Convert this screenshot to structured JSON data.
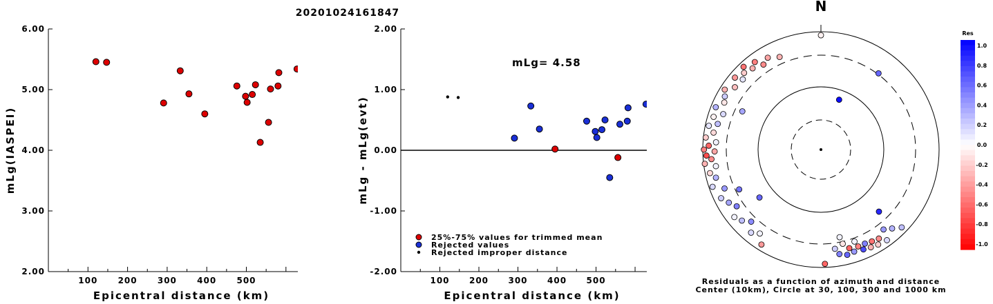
{
  "title": "20201024161847",
  "chart_data": [
    {
      "type": "scatter",
      "xlabel": "Epicentral distance (km)",
      "ylabel": "mLg(IASPEI)",
      "xlim": [
        0,
        630
      ],
      "ylim": [
        2.0,
        6.0
      ],
      "xticks": [
        "100",
        "200",
        "300",
        "400",
        "500"
      ],
      "xtick_values": [
        100,
        200,
        300,
        400,
        500
      ],
      "yticks": [
        "2.00",
        "3.00",
        "4.00",
        "5.00",
        "6.00"
      ],
      "ytick_values": [
        2,
        3,
        4,
        5,
        6
      ],
      "points": [
        {
          "x": 120,
          "y": 5.46
        },
        {
          "x": 147,
          "y": 5.45
        },
        {
          "x": 291,
          "y": 4.78
        },
        {
          "x": 333,
          "y": 5.31
        },
        {
          "x": 355,
          "y": 4.93
        },
        {
          "x": 395,
          "y": 4.6
        },
        {
          "x": 476,
          "y": 5.06
        },
        {
          "x": 498,
          "y": 4.89
        },
        {
          "x": 502,
          "y": 4.79
        },
        {
          "x": 515,
          "y": 4.92
        },
        {
          "x": 523,
          "y": 5.08
        },
        {
          "x": 535,
          "y": 4.13
        },
        {
          "x": 556,
          "y": 4.46
        },
        {
          "x": 561,
          "y": 5.01
        },
        {
          "x": 580,
          "y": 5.06
        },
        {
          "x": 582,
          "y": 5.28
        },
        {
          "x": 628,
          "y": 5.34
        }
      ],
      "marker_color": "#dd0000"
    },
    {
      "type": "scatter",
      "xlabel": "Epicentral distance (km)",
      "ylabel": "mLg - mLg(evt)",
      "xlim": [
        0,
        630
      ],
      "ylim": [
        -2.0,
        2.0
      ],
      "xticks": [
        "100",
        "200",
        "300",
        "400",
        "500"
      ],
      "xtick_values": [
        100,
        200,
        300,
        400,
        500
      ],
      "yticks": [
        "-2.00",
        "-1.00",
        "0.00",
        "1.00",
        "2.00"
      ],
      "ytick_values": [
        -2,
        -1,
        0,
        1,
        2
      ],
      "annotation": "mLg= 4.58",
      "series": [
        {
          "name": "25%-75% values for trimmed mean",
          "color": "#dd0000",
          "points": [
            {
              "x": 395,
              "y": 0.02
            },
            {
              "x": 556,
              "y": -0.12
            }
          ]
        },
        {
          "name": "Rejected values",
          "color": "#1a2fd6",
          "points": [
            {
              "x": 291,
              "y": 0.2
            },
            {
              "x": 333,
              "y": 0.73
            },
            {
              "x": 355,
              "y": 0.35
            },
            {
              "x": 476,
              "y": 0.48
            },
            {
              "x": 498,
              "y": 0.31
            },
            {
              "x": 502,
              "y": 0.21
            },
            {
              "x": 515,
              "y": 0.34
            },
            {
              "x": 523,
              "y": 0.5
            },
            {
              "x": 535,
              "y": -0.45
            },
            {
              "x": 561,
              "y": 0.43
            },
            {
              "x": 580,
              "y": 0.48
            },
            {
              "x": 582,
              "y": 0.7
            },
            {
              "x": 628,
              "y": 0.76
            }
          ]
        },
        {
          "name": "Rejected improper distance",
          "color": "#000000",
          "points": [
            {
              "x": 120,
              "y": 0.88
            },
            {
              "x": 147,
              "y": 0.87
            }
          ]
        }
      ]
    },
    {
      "type": "scatter",
      "subtype": "polar",
      "north_label": "N",
      "caption_line1": "Residuals as a function of azimuth and distance",
      "caption_line2": "Center (10km), Circle at 30, 100, 300 and 1000 km",
      "colorbar": {
        "title": "Res",
        "min": -1.0,
        "max": 1.0,
        "ticks": [
          "1.0",
          "0.8",
          "0.6",
          "0.4",
          "0.2",
          "0.0",
          "-0.2",
          "-0.4",
          "-0.6",
          "-0.8",
          "-1.0"
        ],
        "tick_values": [
          1.0,
          0.8,
          0.6,
          0.4,
          0.2,
          0.0,
          -0.2,
          -0.4,
          -0.6,
          -0.8,
          -1.0
        ]
      },
      "points": [
        {
          "az": 0,
          "r": 0.97,
          "res": -0.05
        },
        {
          "az": 37,
          "r": 0.81,
          "res": 0.6
        },
        {
          "az": 20,
          "r": 0.45,
          "res": 0.95
        },
        {
          "az": 137,
          "r": 0.72,
          "res": 0.85
        },
        {
          "az": 336,
          "r": 0.86,
          "res": -0.3
        },
        {
          "az": 330,
          "r": 0.9,
          "res": -0.35
        },
        {
          "az": 326,
          "r": 0.87,
          "res": -0.45
        },
        {
          "az": 323,
          "r": 0.93,
          "res": -0.5
        },
        {
          "az": 320,
          "r": 0.9,
          "res": -0.3
        },
        {
          "az": 317,
          "r": 0.96,
          "res": -0.55
        },
        {
          "az": 315,
          "r": 0.92,
          "res": -0.2
        },
        {
          "az": 312,
          "r": 0.89,
          "res": 0.1
        },
        {
          "az": 310,
          "r": 0.95,
          "res": -0.4
        },
        {
          "az": 306,
          "r": 0.9,
          "res": -0.25
        },
        {
          "az": 302,
          "r": 0.96,
          "res": -0.3
        },
        {
          "az": 299,
          "r": 0.93,
          "res": 0.2
        },
        {
          "az": 296,
          "r": 0.91,
          "res": -0.1
        },
        {
          "az": 292,
          "r": 0.96,
          "res": 0.3
        },
        {
          "az": 290,
          "r": 0.88,
          "res": 0.15
        },
        {
          "az": 287,
          "r": 0.95,
          "res": -0.05
        },
        {
          "az": 284,
          "r": 0.9,
          "res": 0.25
        },
        {
          "az": 282,
          "r": 0.97,
          "res": 0.1
        },
        {
          "az": 279,
          "r": 0.92,
          "res": -0.15
        },
        {
          "az": 276,
          "r": 0.98,
          "res": -0.2
        },
        {
          "az": 274,
          "r": 0.89,
          "res": 0.05
        },
        {
          "az": 272,
          "r": 0.95,
          "res": -0.6
        },
        {
          "az": 270,
          "r": 0.99,
          "res": -0.5
        },
        {
          "az": 269,
          "r": 0.9,
          "res": -0.35
        },
        {
          "az": 267,
          "r": 0.97,
          "res": -0.7
        },
        {
          "az": 265,
          "r": 0.93,
          "res": -0.45
        },
        {
          "az": 263,
          "r": 0.99,
          "res": -0.3
        },
        {
          "az": 261,
          "r": 0.9,
          "res": 0.05
        },
        {
          "az": 258,
          "r": 0.96,
          "res": -0.15
        },
        {
          "az": 255,
          "r": 0.92,
          "res": 0.3
        },
        {
          "az": 251,
          "r": 0.97,
          "res": 0.15
        },
        {
          "az": 248,
          "r": 0.88,
          "res": 0.4
        },
        {
          "az": 244,
          "r": 0.94,
          "res": 0.2
        },
        {
          "az": 240,
          "r": 0.9,
          "res": 0.35
        },
        {
          "az": 236,
          "r": 0.86,
          "res": 0.5
        },
        {
          "az": 232,
          "r": 0.93,
          "res": 0.05
        },
        {
          "az": 228,
          "r": 0.9,
          "res": 0.25
        },
        {
          "az": 224,
          "r": 0.85,
          "res": 0.45
        },
        {
          "az": 220,
          "r": 0.92,
          "res": 0.15
        },
        {
          "az": 216,
          "r": 0.88,
          "res": 0.05
        },
        {
          "az": 212,
          "r": 0.95,
          "res": -0.4
        },
        {
          "az": 296,
          "r": 0.74,
          "res": 0.35
        },
        {
          "az": 244,
          "r": 0.77,
          "res": 0.55
        },
        {
          "az": 232,
          "r": 0.66,
          "res": 0.6
        },
        {
          "az": 168,
          "r": 0.76,
          "res": 0.05
        },
        {
          "az": 178,
          "r": 0.97,
          "res": -0.6
        },
        {
          "az": 167,
          "r": 0.82,
          "res": -0.1
        },
        {
          "az": 164,
          "r": 0.87,
          "res": -0.6
        },
        {
          "az": 162,
          "r": 0.91,
          "res": 0.4
        },
        {
          "az": 159,
          "r": 0.88,
          "res": -0.5
        },
        {
          "az": 157,
          "r": 0.92,
          "res": 0.7
        },
        {
          "az": 155,
          "r": 0.88,
          "res": 0.5
        },
        {
          "az": 153,
          "r": 0.93,
          "res": -0.3
        },
        {
          "az": 151,
          "r": 0.89,
          "res": -0.55
        },
        {
          "az": 149,
          "r": 0.94,
          "res": -0.2
        },
        {
          "az": 147,
          "r": 0.9,
          "res": -0.45
        },
        {
          "az": 144,
          "r": 0.95,
          "res": 0.15
        },
        {
          "az": 142,
          "r": 0.86,
          "res": 0.4
        },
        {
          "az": 138,
          "r": 0.9,
          "res": 0.3
        },
        {
          "az": 134,
          "r": 0.95,
          "res": 0.25
        },
        {
          "az": 170,
          "r": 0.9,
          "res": 0.5
        },
        {
          "az": 172,
          "r": 0.85,
          "res": 0.2
        },
        {
          "az": 166,
          "r": 0.92,
          "res": 0.6
        },
        {
          "az": 160,
          "r": 0.83,
          "res": 0.05
        }
      ]
    }
  ]
}
